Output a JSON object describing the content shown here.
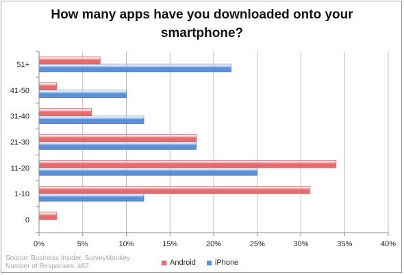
{
  "chart_data": {
    "type": "bar",
    "orientation": "horizontal",
    "title_lines": [
      "How many apps have you downloaded onto your",
      "smartphone?"
    ],
    "categories": [
      "51+",
      "41-50",
      "31-40",
      "21-30",
      "11-20",
      "1-10",
      "0"
    ],
    "series": [
      {
        "name": "Android",
        "color": "#e46c6e",
        "values": [
          7,
          2,
          6,
          18,
          34,
          31,
          2
        ]
      },
      {
        "name": "iPhone",
        "color": "#5b8fd6",
        "values": [
          22,
          10,
          12,
          18,
          25,
          12,
          0
        ]
      }
    ],
    "xlim": [
      0,
      40
    ],
    "xticks": [
      "0%",
      "5%",
      "10%",
      "15%",
      "20%",
      "25%",
      "30%",
      "35%",
      "40%"
    ],
    "xtick_values": [
      0,
      5,
      10,
      15,
      20,
      25,
      30,
      35,
      40
    ],
    "grid": true,
    "legend_position": "bottom"
  },
  "source_lines": [
    "Source: Business Insider, SurveyMonkey",
    "Number of Responses: 487"
  ]
}
